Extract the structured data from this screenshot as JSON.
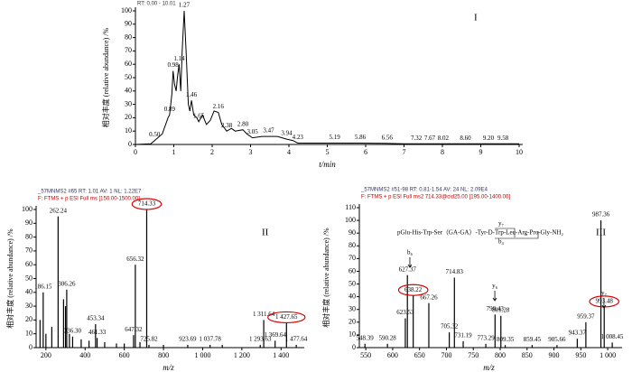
{
  "chart_data": [
    {
      "type": "line",
      "header": [
        "RT: 0.00 - 10.01"
      ],
      "title": "I",
      "xlabel": "t/min",
      "ylabel": "相对丰度 (relative abundance) /%",
      "xlim": [
        0,
        10
      ],
      "ylim": [
        0,
        100
      ],
      "xticks": [
        0,
        1,
        2,
        3,
        4,
        5,
        6,
        7,
        8,
        9,
        10
      ],
      "yticks": [
        0,
        10,
        20,
        30,
        40,
        50,
        60,
        70,
        80,
        90,
        100
      ],
      "color": "#000",
      "x": [
        0,
        0.4,
        0.5,
        0.7,
        0.85,
        0.89,
        0.95,
        0.98,
        1.02,
        1.06,
        1.1,
        1.14,
        1.18,
        1.22,
        1.27,
        1.32,
        1.38,
        1.42,
        1.46,
        1.52,
        1.6,
        1.65,
        1.75,
        1.85,
        1.95,
        2.05,
        2.16,
        2.25,
        2.38,
        2.5,
        2.6,
        2.8,
        2.9,
        3.05,
        3.3,
        3.47,
        3.7,
        3.94,
        4.1,
        4.23,
        4.5,
        5,
        5.19,
        5.86,
        6.5,
        7,
        8,
        9,
        10
      ],
      "values": [
        0,
        0.5,
        3,
        8,
        20,
        22,
        38,
        55,
        45,
        40,
        52,
        60,
        40,
        70,
        100,
        70,
        30,
        25,
        33,
        22,
        20,
        17,
        22,
        15,
        18,
        25,
        24,
        15,
        10,
        12,
        10,
        11,
        8,
        5,
        6,
        6,
        6,
        4,
        3,
        1,
        1,
        1,
        1,
        1,
        0.8,
        0.5,
        0.5,
        0.5,
        0.5
      ],
      "peaks": [
        {
          "x": 0.5,
          "y": 3,
          "label": "0.50"
        },
        {
          "x": 0.89,
          "y": 22,
          "label": "0.89"
        },
        {
          "x": 0.98,
          "y": 55,
          "label": "0.98"
        },
        {
          "x": 1.14,
          "y": 60,
          "label": "1.14"
        },
        {
          "x": 1.27,
          "y": 100,
          "label": "1.27"
        },
        {
          "x": 1.46,
          "y": 33,
          "label": "1.46"
        },
        {
          "x": 1.65,
          "y": 17,
          "label": "1.65"
        },
        {
          "x": 2.16,
          "y": 24,
          "label": "2.16"
        },
        {
          "x": 2.38,
          "y": 10,
          "label": "2.38"
        },
        {
          "x": 2.8,
          "y": 11,
          "label": "2.80"
        },
        {
          "x": 3.05,
          "y": 5,
          "label": "3.05"
        },
        {
          "x": 3.47,
          "y": 6,
          "label": "3.47"
        },
        {
          "x": 3.94,
          "y": 4,
          "label": "3.94"
        },
        {
          "x": 4.23,
          "y": 1,
          "label": "4.23"
        },
        {
          "x": 5.19,
          "y": 1,
          "label": "5.19"
        },
        {
          "x": 5.86,
          "y": 1,
          "label": "5.86"
        },
        {
          "x": 6.56,
          "y": 0.8,
          "label": "6.56"
        },
        {
          "x": 7.32,
          "y": 0.5,
          "label": "7.32"
        },
        {
          "x": 7.67,
          "y": 0.5,
          "label": "7.67"
        },
        {
          "x": 8.02,
          "y": 0.5,
          "label": "8.02"
        },
        {
          "x": 8.6,
          "y": 0.5,
          "label": "8.60"
        },
        {
          "x": 9.2,
          "y": 0.5,
          "label": "9.20"
        },
        {
          "x": 9.58,
          "y": 0.5,
          "label": "9.58"
        }
      ]
    },
    {
      "type": "spectrum",
      "header": [
        "_57MNMS2 #65  RT: 1.01  AV: 1  NL: 1.22E7",
        "F: FTMS + p ESI Full ms [150.00-1500.00]"
      ],
      "title": "II",
      "xlabel": "m/z",
      "ylabel": "相对丰度 (relative abundance) /%",
      "xlim": [
        150,
        1500
      ],
      "ylim": [
        0,
        100
      ],
      "xticks": [
        200,
        400,
        600,
        800,
        {
          "value": 1000,
          "label": "1 000"
        },
        {
          "value": 1200,
          "label": "1 200"
        },
        {
          "value": 1400,
          "label": "1 400"
        }
      ],
      "yticks": [
        0,
        10,
        20,
        30,
        40,
        50,
        60,
        70,
        80,
        90,
        100
      ],
      "color": "#000",
      "peaks": [
        {
          "x": 170,
          "y": 20
        },
        {
          "x": 186.15,
          "y": 40,
          "label": "186.15"
        },
        {
          "x": 200,
          "y": 10
        },
        {
          "x": 230,
          "y": 15
        },
        {
          "x": 262.24,
          "y": 95,
          "label": "262.24"
        },
        {
          "x": 290,
          "y": 35
        },
        {
          "x": 300,
          "y": 30
        },
        {
          "x": 306.26,
          "y": 42,
          "label": "306.26"
        },
        {
          "x": 320,
          "y": 10
        },
        {
          "x": 336.3,
          "y": 8,
          "label": "336.30"
        },
        {
          "x": 380,
          "y": 6
        },
        {
          "x": 420,
          "y": 5
        },
        {
          "x": 453.34,
          "y": 17,
          "label": "453.34"
        },
        {
          "x": 461.33,
          "y": 7,
          "label": "461.33"
        },
        {
          "x": 500,
          "y": 4
        },
        {
          "x": 560,
          "y": 3
        },
        {
          "x": 600,
          "y": 3
        },
        {
          "x": 647.32,
          "y": 9,
          "label": "647.32"
        },
        {
          "x": 656.32,
          "y": 60,
          "label": "656.32"
        },
        {
          "x": 680,
          "y": 4
        },
        {
          "x": 714.33,
          "y": 100,
          "label": "714.33",
          "circled": true
        },
        {
          "x": 725.82,
          "y": 2,
          "label": "725.82"
        },
        {
          "x": 800,
          "y": 2
        },
        {
          "x": 923.69,
          "y": 2,
          "label": "923.69"
        },
        {
          "x": 1037.78,
          "y": 2,
          "label": "1 037.78"
        },
        {
          "x": 1100,
          "y": 2
        },
        {
          "x": 1293.63,
          "y": 2,
          "label": "1 293.63"
        },
        {
          "x": 1311.64,
          "y": 20,
          "label": "1 311.64"
        },
        {
          "x": 1369.64,
          "y": 5,
          "label": "1 369.64"
        },
        {
          "x": 1427.65,
          "y": 18,
          "label": "1 427.65",
          "circled": true
        },
        {
          "x": 1477.64,
          "y": 2,
          "label": "1 477.64"
        }
      ]
    },
    {
      "type": "spectrum",
      "header": [
        "_57MNMS2 #51-98  RT: 0.81-1.54  AV: 24  NL: 2.09E4",
        "F: FTMS + p ESI Full ms2 714.33@cid25.00 [195.00-1400.00]"
      ],
      "title": "III",
      "xlabel": "m/z",
      "ylabel": "相对丰度 (relative abundance) /%",
      "xlim": [
        538,
        1020
      ],
      "ylim": [
        0,
        110
      ],
      "xticks": [
        550,
        600,
        650,
        700,
        750,
        800,
        850,
        900,
        950,
        {
          "value": 1000,
          "label": "1 000"
        }
      ],
      "yticks": [
        0,
        10,
        20,
        30,
        40,
        50,
        60,
        70,
        80,
        90,
        100,
        110
      ],
      "color": "#000",
      "peaks": [
        {
          "x": 548.39,
          "y": 3,
          "label": "548.39"
        },
        {
          "x": 590.28,
          "y": 3,
          "label": "590.28"
        },
        {
          "x": 623.53,
          "y": 23,
          "label": "623.53"
        },
        {
          "x": 627.37,
          "y": 57,
          "label": "627.37"
        },
        {
          "x": 638.22,
          "y": 41,
          "label": "638.22",
          "circled": true
        },
        {
          "x": 667.26,
          "y": 35,
          "label": "667.26"
        },
        {
          "x": 705.32,
          "y": 12,
          "label": "705.32"
        },
        {
          "x": 714.83,
          "y": 55,
          "label": "714.83"
        },
        {
          "x": 731.19,
          "y": 5,
          "label": "731.19"
        },
        {
          "x": 773.29,
          "y": 3,
          "label": "773.29"
        },
        {
          "x": 790.43,
          "y": 26,
          "label": "790.43"
        },
        {
          "x": 801.28,
          "y": 25,
          "label": "801.28"
        },
        {
          "x": 809.35,
          "y": 2,
          "label": "809.35"
        },
        {
          "x": 859.45,
          "y": 2,
          "label": "859.45"
        },
        {
          "x": 905.66,
          "y": 2,
          "label": "905.66"
        },
        {
          "x": 943.37,
          "y": 7,
          "label": "943.37"
        },
        {
          "x": 959.37,
          "y": 20,
          "label": "959.37"
        },
        {
          "x": 987.36,
          "y": 100,
          "label": "987.36"
        },
        {
          "x": 993.48,
          "y": 32,
          "label": "993.48",
          "circled": true
        },
        {
          "x": 1008.45,
          "y": 4,
          "label": "1 008.45"
        }
      ],
      "annotations": [
        "pGlu-His-Trp-Ser（GA-GA）-Tyr-D-Trp-Leu-Arg-Pro-Gly-NH₂",
        "y₇",
        "b₄",
        "b₆",
        "y₆",
        "y₇"
      ]
    }
  ]
}
